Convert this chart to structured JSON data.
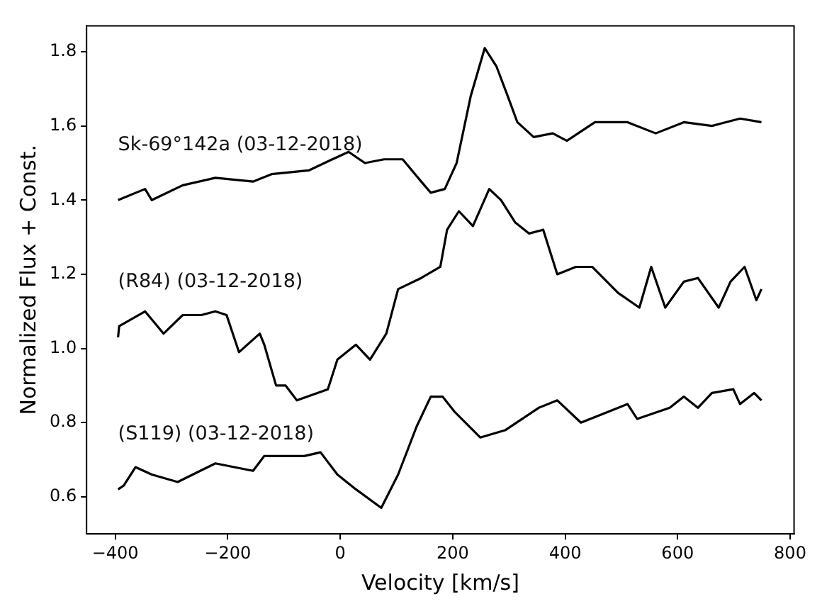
{
  "chart_data": {
    "type": "line",
    "xlabel": "Velocity [km/s]",
    "ylabel": "Normalized Flux + Const.",
    "xlim": [
      -451,
      807
    ],
    "ylim": [
      0.5,
      1.87
    ],
    "xticks": [
      {
        "value": -400,
        "label": "−400"
      },
      {
        "value": -200,
        "label": "−200"
      },
      0,
      200,
      400,
      600,
      800
    ],
    "yticks": [
      0.6,
      0.8,
      {
        "value": 1,
        "label": "1.0"
      },
      1.2,
      1.4,
      1.6,
      1.8
    ],
    "grid": false,
    "legend": false,
    "marker": "none",
    "line_style": "solid",
    "series": [
      {
        "name": "Sk-69°142a (03-12-2018)",
        "color": "#000000",
        "x": [
          -395,
          -347,
          -335,
          -280,
          -222,
          -155,
          -122,
          -56,
          -14,
          15,
          44,
          78,
          111,
          144,
          161,
          186,
          207,
          232,
          257,
          278,
          298,
          315,
          344,
          378,
          403,
          453,
          511,
          561,
          611,
          661,
          711,
          749
        ],
        "values": [
          1.4,
          1.43,
          1.4,
          1.44,
          1.46,
          1.45,
          1.47,
          1.48,
          1.51,
          1.53,
          1.5,
          1.51,
          1.51,
          1.45,
          1.42,
          1.43,
          1.5,
          1.68,
          1.81,
          1.76,
          1.68,
          1.61,
          1.57,
          1.58,
          1.56,
          1.61,
          1.61,
          1.58,
          1.61,
          1.6,
          1.62,
          1.61
        ]
      },
      {
        "name": "(R84) (03-12-2018)",
        "color": "#000000",
        "x": [
          -395,
          -393,
          -347,
          -314,
          -280,
          -247,
          -222,
          -202,
          -180,
          -143,
          -135,
          -114,
          -97,
          -77,
          -22,
          -5,
          28,
          53,
          82,
          103,
          144,
          178,
          190,
          211,
          236,
          265,
          286,
          311,
          336,
          361,
          386,
          419,
          448,
          494,
          532,
          553,
          578,
          611,
          636,
          673,
          694,
          719,
          740,
          749
        ],
        "values": [
          1.03,
          1.06,
          1.1,
          1.04,
          1.09,
          1.09,
          1.1,
          1.09,
          0.99,
          1.04,
          1.01,
          0.9,
          0.9,
          0.86,
          0.89,
          0.97,
          1.01,
          0.97,
          1.04,
          1.16,
          1.19,
          1.22,
          1.32,
          1.37,
          1.33,
          1.43,
          1.4,
          1.34,
          1.31,
          1.32,
          1.2,
          1.22,
          1.22,
          1.15,
          1.11,
          1.22,
          1.11,
          1.18,
          1.19,
          1.11,
          1.18,
          1.22,
          1.13,
          1.16
        ]
      },
      {
        "name": "(S119) (03-12-2018)",
        "color": "#000000",
        "x": [
          -395,
          -385,
          -364,
          -335,
          -289,
          -222,
          -155,
          -135,
          -97,
          -64,
          -35,
          -5,
          28,
          73,
          103,
          136,
          161,
          182,
          203,
          249,
          294,
          353,
          386,
          428,
          478,
          511,
          528,
          586,
          611,
          636,
          661,
          699,
          711,
          736,
          749
        ],
        "values": [
          0.62,
          0.63,
          0.68,
          0.66,
          0.64,
          0.69,
          0.67,
          0.71,
          0.71,
          0.71,
          0.72,
          0.66,
          0.62,
          0.57,
          0.66,
          0.79,
          0.87,
          0.87,
          0.83,
          0.76,
          0.78,
          0.84,
          0.86,
          0.8,
          0.83,
          0.85,
          0.81,
          0.84,
          0.87,
          0.84,
          0.88,
          0.89,
          0.85,
          0.88,
          0.86
        ]
      }
    ]
  }
}
